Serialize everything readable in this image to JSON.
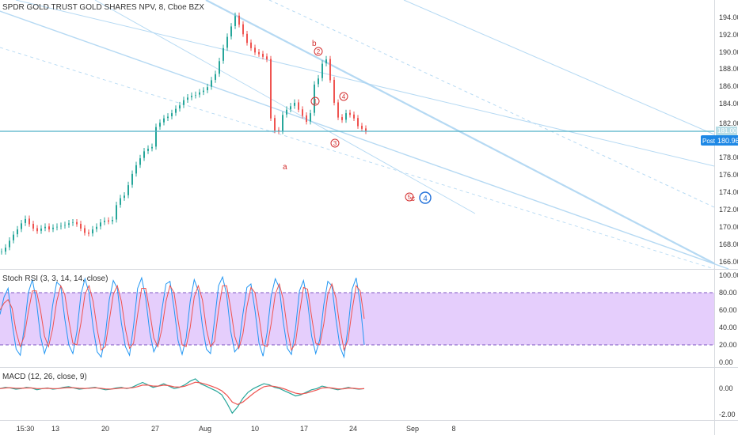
{
  "header": {
    "title": "SPDR GOLD TRUST GOLD SHARES NPV, 8, Cboe BZX"
  },
  "colors": {
    "up": "#26a69a",
    "down": "#ef5350",
    "channel": "#a9d3f1",
    "price_line": "#4fb0c6",
    "wave_red": "#d32f2f",
    "wave_blue": "#1e6fd9",
    "stoch_band": "#e1c6fb",
    "stoch_k": "#2196f3",
    "stoch_d": "#ef5350",
    "macd": "#26a69a",
    "signal": "#ef5350",
    "axis_badge": "#1e88e5"
  },
  "price_pane": {
    "y_ticks": [
      "194.00",
      "192.00",
      "190.00",
      "188.00",
      "186.00",
      "184.00",
      "182.00",
      "180.00",
      "178.00",
      "176.00",
      "174.00",
      "172.00",
      "170.00",
      "168.00",
      "166.00"
    ],
    "price_tag": "180.96",
    "price_tag_label": "Post",
    "hidden_tag": "181.00"
  },
  "wave_labels": {
    "a": "a",
    "b": "b",
    "c": "c",
    "w1": "1",
    "w2": "2",
    "w3": "3",
    "w4": "4",
    "w5": "5",
    "w4_blue": "4"
  },
  "stoch_pane": {
    "title": "Stoch RSI (3, 3, 14, 14, close)",
    "y_ticks": [
      "100.00",
      "80.00",
      "60.00",
      "40.00",
      "20.00",
      "0.00"
    ]
  },
  "macd_pane": {
    "title": "MACD (12, 26, close, 9)",
    "y_ticks": [
      "0.00",
      "-2.00"
    ]
  },
  "x_axis": {
    "ticks": [
      "15:30",
      "13",
      "20",
      "27",
      "Aug",
      "10",
      "17",
      "24",
      "Sep",
      "8"
    ]
  },
  "chart_data": [
    {
      "type": "line",
      "title": "SPDR GOLD TRUST GOLD SHARES NPV, 8, Cboe BZX",
      "ylim": [
        165,
        195
      ],
      "x": [
        0,
        5,
        10,
        15,
        20,
        25,
        30,
        35,
        40,
        45,
        50,
        55,
        60,
        65,
        70,
        75,
        80,
        85,
        90,
        95,
        100,
        105,
        110,
        115,
        120,
        125,
        130,
        135,
        140,
        145,
        150,
        155,
        160,
        165,
        170,
        175,
        180,
        185,
        190,
        195,
        200,
        205,
        210,
        215,
        220,
        225,
        230,
        235,
        240,
        245,
        250,
        255,
        260,
        265,
        270,
        275,
        280,
        285,
        290,
        295,
        300,
        305,
        310,
        315,
        320,
        325,
        330,
        335,
        340,
        345,
        350,
        355,
        360,
        365,
        370,
        375,
        380,
        385,
        390,
        395,
        400,
        405,
        410,
        415,
        420,
        425,
        430,
        435,
        440,
        445,
        450,
        455,
        460
      ],
      "values": [
        167.0,
        167.5,
        168.3,
        169.0,
        169.6,
        170.3,
        170.8,
        170.2,
        169.7,
        169.4,
        169.7,
        169.9,
        169.6,
        169.8,
        169.9,
        170.0,
        170.1,
        170.3,
        170.4,
        170.2,
        169.7,
        169.2,
        169.1,
        169.6,
        169.9,
        170.4,
        170.6,
        170.5,
        170.7,
        172.4,
        173.2,
        173.5,
        174.7,
        176.0,
        177.0,
        177.8,
        178.6,
        178.9,
        179.1,
        181.4,
        181.9,
        182.4,
        182.6,
        183.0,
        183.5,
        183.9,
        184.5,
        184.8,
        185.0,
        185.1,
        185.4,
        185.6,
        186.0,
        186.8,
        187.5,
        189.0,
        190.5,
        191.8,
        193.0,
        194.2,
        193.2,
        192.1,
        191.1,
        190.5,
        190.0,
        189.8,
        189.5,
        189.2,
        182.4,
        181.0,
        180.9,
        182.8,
        183.4,
        183.8,
        184.2,
        183.4,
        182.7,
        182.0,
        183.0,
        186.3,
        187.0,
        188.7,
        189.2,
        186.8,
        184.2,
        182.5,
        182.2,
        183.0,
        182.8,
        182.4,
        181.5,
        181.2,
        180.9
      ]
    },
    {
      "type": "line",
      "title": "Stoch RSI (3, 3, 14, 14, close)",
      "ylim": [
        0,
        100
      ],
      "series": [
        {
          "name": "K",
          "values": [
            55,
            75,
            85,
            45,
            15,
            8,
            40,
            80,
            95,
            70,
            30,
            10,
            25,
            65,
            92,
            88,
            50,
            20,
            10,
            35,
            78,
            96,
            80,
            40,
            12,
            6,
            30,
            72,
            94,
            85,
            45,
            18,
            8,
            42,
            85,
            97,
            74,
            35,
            12,
            22,
            60,
            90,
            93,
            62,
            25,
            9,
            28,
            70,
            95,
            82,
            42,
            15,
            10,
            48,
            88,
            98,
            78,
            36,
            12,
            18,
            55,
            86,
            90,
            60,
            22,
            7,
            34,
            76,
            96,
            86,
            46,
            16,
            9,
            38,
            82,
            94,
            70,
            30,
            10,
            26,
            66,
            93,
            88,
            50,
            18,
            6,
            40,
            84,
            97,
            68,
            20
          ]
        },
        {
          "name": "D",
          "values": [
            60,
            68,
            72,
            62,
            35,
            18,
            30,
            58,
            82,
            82,
            60,
            30,
            18,
            38,
            70,
            88,
            78,
            48,
            22,
            20,
            45,
            78,
            88,
            70,
            38,
            14,
            18,
            48,
            78,
            88,
            70,
            38,
            16,
            22,
            55,
            85,
            85,
            58,
            28,
            18,
            38,
            70,
            88,
            80,
            48,
            20,
            18,
            40,
            75,
            88,
            72,
            38,
            18,
            24,
            60,
            88,
            88,
            62,
            30,
            16,
            32,
            64,
            86,
            80,
            52,
            20,
            18,
            44,
            78,
            90,
            72,
            38,
            14,
            22,
            56,
            86,
            84,
            52,
            22,
            20,
            44,
            78,
            90,
            74,
            40,
            14,
            26,
            60,
            88,
            82,
            50
          ]
        }
      ]
    },
    {
      "type": "line",
      "title": "MACD (12, 26, close, 9)",
      "ylim": [
        -2.5,
        1.5
      ],
      "series": [
        {
          "name": "MACD",
          "values": [
            0.0,
            0.1,
            0.05,
            -0.05,
            0.0,
            0.1,
            0.05,
            -0.1,
            0.0,
            0.05,
            -0.05,
            0.0,
            0.1,
            0.15,
            0.05,
            -0.05,
            0.0,
            0.05,
            0.1,
            0.0,
            -0.1,
            -0.05,
            0.05,
            0.1,
            0.0,
            0.1,
            0.3,
            0.5,
            0.3,
            0.1,
            0.2,
            0.4,
            0.2,
            0.0,
            0.1,
            0.3,
            0.6,
            0.8,
            0.4,
            0.2,
            0.0,
            -0.2,
            -0.5,
            -1.2,
            -2.0,
            -1.5,
            -0.8,
            -0.3,
            0.0,
            0.2,
            0.4,
            0.3,
            0.1,
            0.0,
            -0.2,
            -0.4,
            -0.6,
            -0.5,
            -0.3,
            -0.1,
            0.0,
            0.2,
            0.1,
            0.0,
            -0.1,
            0.0,
            0.1,
            0.0,
            -0.05,
            0.0
          ]
        },
        {
          "name": "Signal",
          "values": [
            0.0,
            0.05,
            0.07,
            0.03,
            0.02,
            0.05,
            0.05,
            0.0,
            0.0,
            0.02,
            0.0,
            0.0,
            0.05,
            0.08,
            0.07,
            0.02,
            0.01,
            0.03,
            0.06,
            0.03,
            -0.03,
            -0.04,
            0.0,
            0.05,
            0.03,
            0.06,
            0.15,
            0.28,
            0.29,
            0.2,
            0.2,
            0.28,
            0.24,
            0.14,
            0.12,
            0.19,
            0.35,
            0.52,
            0.47,
            0.35,
            0.2,
            0.04,
            -0.18,
            -0.55,
            -1.1,
            -1.3,
            -1.1,
            -0.75,
            -0.4,
            -0.1,
            0.15,
            0.22,
            0.17,
            0.09,
            -0.05,
            -0.22,
            -0.38,
            -0.44,
            -0.38,
            -0.25,
            -0.12,
            0.05,
            0.08,
            0.04,
            -0.03,
            -0.02,
            0.04,
            0.02,
            -0.02,
            -0.01
          ]
        }
      ]
    }
  ]
}
